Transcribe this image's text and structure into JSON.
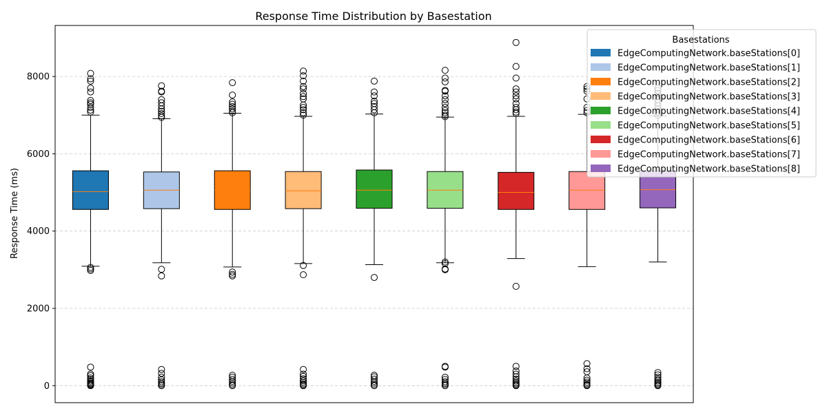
{
  "chart_data": {
    "type": "box",
    "title": "Response Time Distribution by Basestation",
    "xlabel": "",
    "ylabel": "Response Time (ms)",
    "ylim": [
      -440,
      9320
    ],
    "yticks": [
      0,
      2000,
      4000,
      6000,
      8000
    ],
    "grid": "y-dashed",
    "legend": {
      "title": "Basestations",
      "placement": "top-right",
      "entries": [
        "EdgeComputingNetwork.baseStations[0]",
        "EdgeComputingNetwork.baseStations[1]",
        "EdgeComputingNetwork.baseStations[2]",
        "EdgeComputingNetwork.baseStations[3]",
        "EdgeComputingNetwork.baseStations[4]",
        "EdgeComputingNetwork.baseStations[5]",
        "EdgeComputingNetwork.baseStations[6]",
        "EdgeComputingNetwork.baseStations[7]",
        "EdgeComputingNetwork.baseStations[8]"
      ]
    },
    "colors": [
      "#1f77b4",
      "#aec7e8",
      "#ff7f0e",
      "#ffbb78",
      "#2ca02c",
      "#98df8a",
      "#d62728",
      "#ff9896",
      "#9467bd"
    ],
    "median_color": "#ff7f0e",
    "series": [
      {
        "name": "EdgeComputingNetwork.baseStations[0]",
        "whisker_low": 3090,
        "q1": 4560,
        "median": 5020,
        "q3": 5560,
        "whisker_high": 7000,
        "outliers": [
          2980,
          3020,
          3060,
          7080,
          7130,
          7200,
          7280,
          7320,
          7380,
          7600,
          7700,
          7880,
          7940,
          8080,
          0,
          20,
          40,
          60,
          90,
          120,
          160,
          200,
          260,
          300,
          480
        ]
      },
      {
        "name": "EdgeComputingNetwork.baseStations[1]",
        "whisker_low": 3180,
        "q1": 4580,
        "median": 5060,
        "q3": 5530,
        "whisker_high": 6910,
        "outliers": [
          2840,
          3010,
          6940,
          6980,
          7040,
          7100,
          7160,
          7240,
          7320,
          7400,
          7600,
          7620,
          7760,
          0,
          30,
          60,
          100,
          150,
          220,
          320,
          420
        ]
      },
      {
        "name": "EdgeComputingNetwork.baseStations[2]",
        "whisker_low": 3070,
        "q1": 4560,
        "median": 5060,
        "q3": 5560,
        "whisker_high": 7050,
        "outliers": [
          2840,
          2880,
          2940,
          7060,
          7100,
          7160,
          7220,
          7280,
          7340,
          7520,
          7840,
          0,
          30,
          70,
          110,
          160,
          220,
          270
        ]
      },
      {
        "name": "EdgeComputingNetwork.baseStations[3]",
        "whisker_low": 3160,
        "q1": 4580,
        "median": 5040,
        "q3": 5540,
        "whisker_high": 6970,
        "outliers": [
          2870,
          3110,
          7000,
          7060,
          7140,
          7200,
          7260,
          7420,
          7480,
          7560,
          7680,
          7740,
          7880,
          8020,
          8140,
          0,
          20,
          50,
          90,
          130,
          180,
          240,
          300,
          420
        ]
      },
      {
        "name": "EdgeComputingNetwork.baseStations[4]",
        "whisker_low": 3130,
        "q1": 4590,
        "median": 5060,
        "q3": 5580,
        "whisker_high": 7030,
        "outliers": [
          2800,
          7060,
          7140,
          7220,
          7300,
          7360,
          7500,
          7600,
          7880,
          0,
          30,
          70,
          110,
          170,
          230,
          270
        ]
      },
      {
        "name": "EdgeComputingNetwork.baseStations[5]",
        "whisker_low": 3180,
        "q1": 4590,
        "median": 5060,
        "q3": 5540,
        "whisker_high": 6950,
        "outliers": [
          3000,
          3020,
          3160,
          3200,
          6960,
          7000,
          7060,
          7120,
          7200,
          7300,
          7400,
          7500,
          7620,
          7640,
          7860,
          7960,
          8160,
          0,
          30,
          60,
          100,
          160,
          220,
          480,
          500
        ]
      },
      {
        "name": "EdgeComputingNetwork.baseStations[6]",
        "whisker_low": 3290,
        "q1": 4560,
        "median": 5000,
        "q3": 5520,
        "whisker_high": 6970,
        "outliers": [
          2570,
          7040,
          7080,
          7140,
          7200,
          7300,
          7420,
          7500,
          7600,
          7680,
          7960,
          8260,
          8880,
          0,
          20,
          50,
          80,
          120,
          170,
          230,
          300,
          380,
          500
        ]
      },
      {
        "name": "EdgeComputingNetwork.baseStations[7]",
        "whisker_low": 3080,
        "q1": 4560,
        "median": 5060,
        "q3": 5540,
        "whisker_high": 7020,
        "outliers": [
          7060,
          7120,
          7200,
          7420,
          7620,
          7680,
          7740,
          0,
          20,
          50,
          90,
          140,
          200,
          360,
          440,
          570
        ]
      },
      {
        "name": "EdgeComputingNetwork.baseStations[8]",
        "whisker_low": 3200,
        "q1": 4600,
        "median": 5070,
        "q3": 5560,
        "whisker_high": 6980,
        "outliers": [
          7000,
          7080,
          7160,
          7240,
          7320,
          7400,
          7480,
          7560,
          7640,
          7700,
          0,
          20,
          50,
          80,
          120,
          160,
          220,
          280,
          340
        ]
      }
    ]
  }
}
